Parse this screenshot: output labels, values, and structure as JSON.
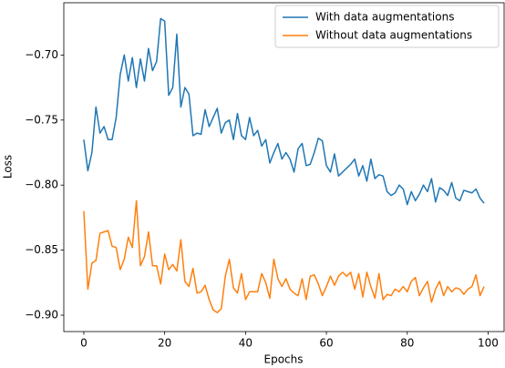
{
  "chart_data": {
    "type": "line",
    "x_label": "Epochs",
    "y_label": "Loss",
    "x": [
      0,
      1,
      2,
      3,
      4,
      5,
      6,
      7,
      8,
      9,
      10,
      11,
      12,
      13,
      14,
      15,
      16,
      17,
      18,
      19,
      20,
      21,
      22,
      23,
      24,
      25,
      26,
      27,
      28,
      29,
      30,
      31,
      32,
      33,
      34,
      35,
      36,
      37,
      38,
      39,
      40,
      41,
      42,
      43,
      44,
      45,
      46,
      47,
      48,
      49,
      50,
      51,
      52,
      53,
      54,
      55,
      56,
      57,
      58,
      59,
      60,
      61,
      62,
      63,
      64,
      65,
      66,
      67,
      68,
      69,
      70,
      71,
      72,
      73,
      74,
      75,
      76,
      77,
      78,
      79,
      80,
      81,
      82,
      83,
      84,
      85,
      86,
      87,
      88,
      89,
      90,
      91,
      92,
      93,
      94,
      95,
      96,
      97,
      98,
      99
    ],
    "series": [
      {
        "name": "With data augmentations",
        "color": "#1f77b4",
        "values": [
          -0.765,
          -0.789,
          -0.775,
          -0.74,
          -0.76,
          -0.755,
          -0.765,
          -0.765,
          -0.748,
          -0.715,
          -0.7,
          -0.72,
          -0.702,
          -0.725,
          -0.703,
          -0.72,
          -0.695,
          -0.712,
          -0.705,
          -0.672,
          -0.674,
          -0.731,
          -0.725,
          -0.684,
          -0.74,
          -0.725,
          -0.73,
          -0.762,
          -0.76,
          -0.761,
          -0.742,
          -0.755,
          -0.748,
          -0.741,
          -0.76,
          -0.752,
          -0.75,
          -0.765,
          -0.745,
          -0.762,
          -0.765,
          -0.748,
          -0.762,
          -0.758,
          -0.77,
          -0.765,
          -0.783,
          -0.775,
          -0.768,
          -0.78,
          -0.775,
          -0.78,
          -0.79,
          -0.772,
          -0.768,
          -0.785,
          -0.784,
          -0.775,
          -0.764,
          -0.766,
          -0.785,
          -0.79,
          -0.776,
          -0.793,
          -0.79,
          -0.787,
          -0.784,
          -0.78,
          -0.793,
          -0.785,
          -0.797,
          -0.78,
          -0.795,
          -0.792,
          -0.793,
          -0.805,
          -0.808,
          -0.806,
          -0.8,
          -0.803,
          -0.815,
          -0.805,
          -0.812,
          -0.807,
          -0.8,
          -0.805,
          -0.795,
          -0.813,
          -0.802,
          -0.804,
          -0.808,
          -0.798,
          -0.81,
          -0.812,
          -0.804,
          -0.805,
          -0.806,
          -0.803,
          -0.81,
          -0.814
        ]
      },
      {
        "name": "Without data augmentations",
        "color": "#ff7f0e",
        "values": [
          -0.82,
          -0.88,
          -0.86,
          -0.858,
          -0.837,
          -0.836,
          -0.835,
          -0.847,
          -0.848,
          -0.865,
          -0.857,
          -0.84,
          -0.848,
          -0.812,
          -0.862,
          -0.855,
          -0.836,
          -0.862,
          -0.862,
          -0.876,
          -0.853,
          -0.865,
          -0.861,
          -0.866,
          -0.842,
          -0.874,
          -0.878,
          -0.864,
          -0.883,
          -0.882,
          -0.877,
          -0.888,
          -0.896,
          -0.898,
          -0.895,
          -0.87,
          -0.857,
          -0.879,
          -0.883,
          -0.868,
          -0.888,
          -0.882,
          -0.882,
          -0.882,
          -0.868,
          -0.875,
          -0.887,
          -0.857,
          -0.872,
          -0.878,
          -0.872,
          -0.88,
          -0.883,
          -0.885,
          -0.872,
          -0.888,
          -0.87,
          -0.869,
          -0.876,
          -0.885,
          -0.878,
          -0.87,
          -0.877,
          -0.87,
          -0.867,
          -0.87,
          -0.867,
          -0.88,
          -0.868,
          -0.886,
          -0.867,
          -0.878,
          -0.887,
          -0.868,
          -0.888,
          -0.884,
          -0.885,
          -0.88,
          -0.882,
          -0.878,
          -0.882,
          -0.874,
          -0.871,
          -0.885,
          -0.879,
          -0.874,
          -0.89,
          -0.88,
          -0.874,
          -0.885,
          -0.878,
          -0.882,
          -0.879,
          -0.88,
          -0.884,
          -0.88,
          -0.878,
          -0.869,
          -0.885,
          -0.878
        ]
      }
    ],
    "xlim": [
      -4.95,
      103.95
    ],
    "xticks": [
      0,
      20,
      40,
      60,
      80,
      100
    ],
    "ylim": [
      -0.9126,
      -0.6598
    ],
    "yticks": [
      {
        "value": -0.9,
        "label": "−0.90"
      },
      {
        "value": -0.85,
        "label": "−0.85"
      },
      {
        "value": -0.8,
        "label": "−0.80"
      },
      {
        "value": -0.75,
        "label": "−0.75"
      },
      {
        "value": -0.7,
        "label": "−0.70"
      }
    ],
    "grid": false,
    "legend": "upper right"
  }
}
